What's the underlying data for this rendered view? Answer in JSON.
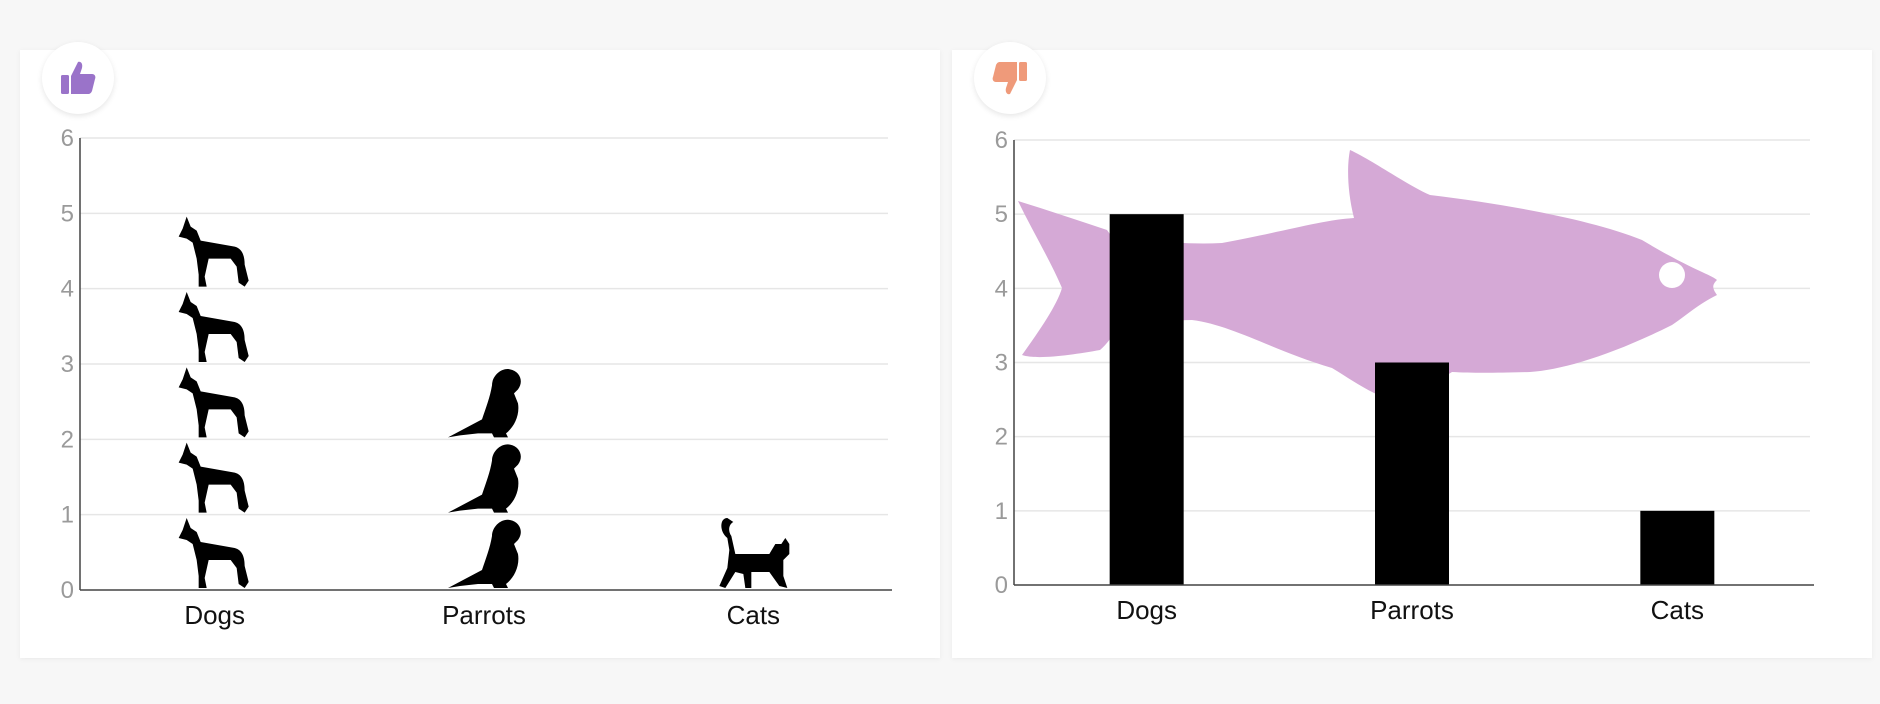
{
  "colors": {
    "good_accent": "#9a73c9",
    "bad_accent": "#ef9a7a",
    "fish": "#d5a9d6",
    "bars": "#000000",
    "grid": "#e6e6e6",
    "axis": "#444444"
  },
  "panels": [
    {
      "badge_icon": "thumbs-up-icon"
    },
    {
      "badge_icon": "thumbs-down-icon"
    }
  ],
  "chart_data": [
    {
      "type": "bar",
      "style": "pictograph",
      "categories": [
        "Dogs",
        "Parrots",
        "Cats"
      ],
      "values": [
        5,
        3,
        1
      ],
      "icons": [
        "dog-icon",
        "parrot-icon",
        "cat-icon"
      ],
      "yticks": [
        "0",
        "1",
        "2",
        "3",
        "4",
        "5",
        "6"
      ],
      "ylim": [
        0,
        6
      ],
      "grid": true
    },
    {
      "type": "bar",
      "style": "bars-over-decorative-fish",
      "categories": [
        "Dogs",
        "Parrots",
        "Cats"
      ],
      "values": [
        5,
        3,
        1
      ],
      "yticks": [
        "0",
        "1",
        "2",
        "3",
        "4",
        "5",
        "6"
      ],
      "ylim": [
        0,
        6
      ],
      "grid": true,
      "decoration": "fish-illustration"
    }
  ]
}
